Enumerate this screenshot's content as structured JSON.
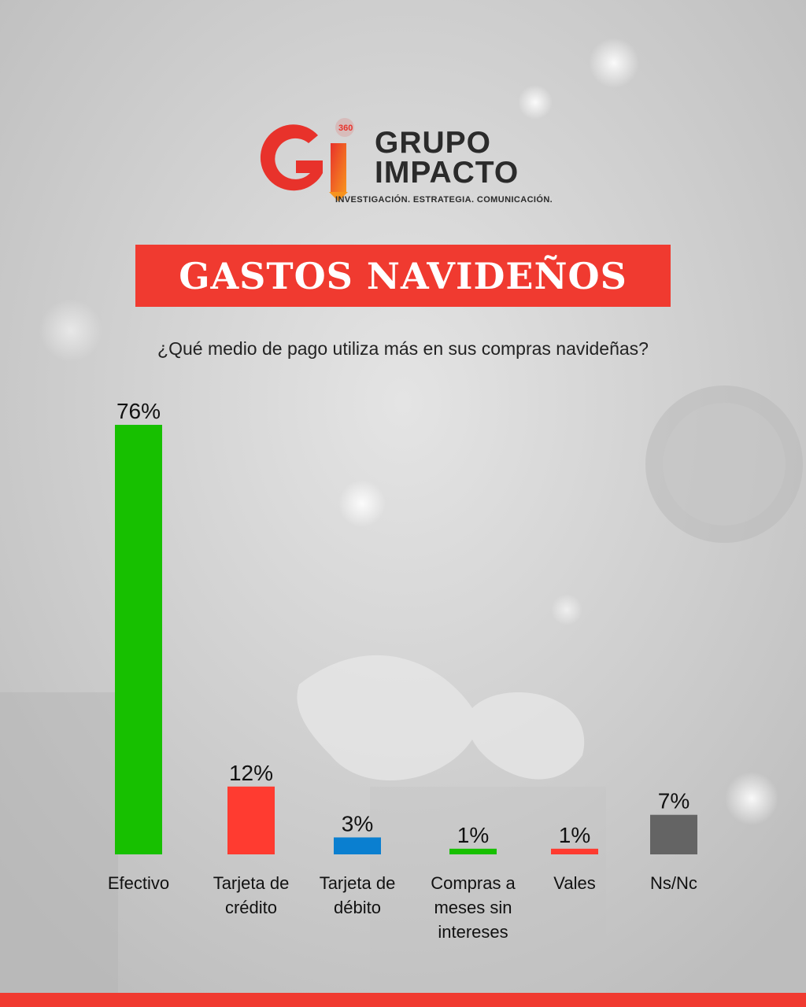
{
  "brand": {
    "badge": "360",
    "line1": "GRUPO",
    "line2": "IMPACTO",
    "tagline": "INVESTIGACIÓN. ESTRATEGIA. COMUNICACIÓN.",
    "colors": {
      "red": "#e8322b",
      "orange": "#f7931e",
      "dark": "#2b2b2b"
    }
  },
  "banner": {
    "title": "GASTOS NAVIDEÑOS",
    "color": "#f03a30"
  },
  "question": "¿Qué medio de pago utiliza más en sus compras navideñas?",
  "chart_data": {
    "type": "bar",
    "title": "",
    "xlabel": "",
    "ylabel": "",
    "ylim": [
      0,
      76
    ],
    "grid": false,
    "categories": [
      "Efectivo",
      "Tarjeta de crédito",
      "Tarjeta de débito",
      "Compras a meses sin intereses",
      "Vales",
      "Ns/Nc"
    ],
    "category_lines": [
      [
        "Efectivo"
      ],
      [
        "Tarjeta de",
        "crédito"
      ],
      [
        "Tarjeta de",
        "débito"
      ],
      [
        "Compras a",
        "meses sin",
        "intereses"
      ],
      [
        "Vales"
      ],
      [
        "Ns/Nc"
      ]
    ],
    "values": [
      76,
      12,
      3,
      1,
      1,
      7
    ],
    "value_labels": [
      "76%",
      "12%",
      "3%",
      "1%",
      "1%",
      "7%"
    ],
    "colors": [
      "#17c000",
      "#ff3b30",
      "#0a7fd0",
      "#17c000",
      "#ff3b30",
      "#646464"
    ]
  }
}
